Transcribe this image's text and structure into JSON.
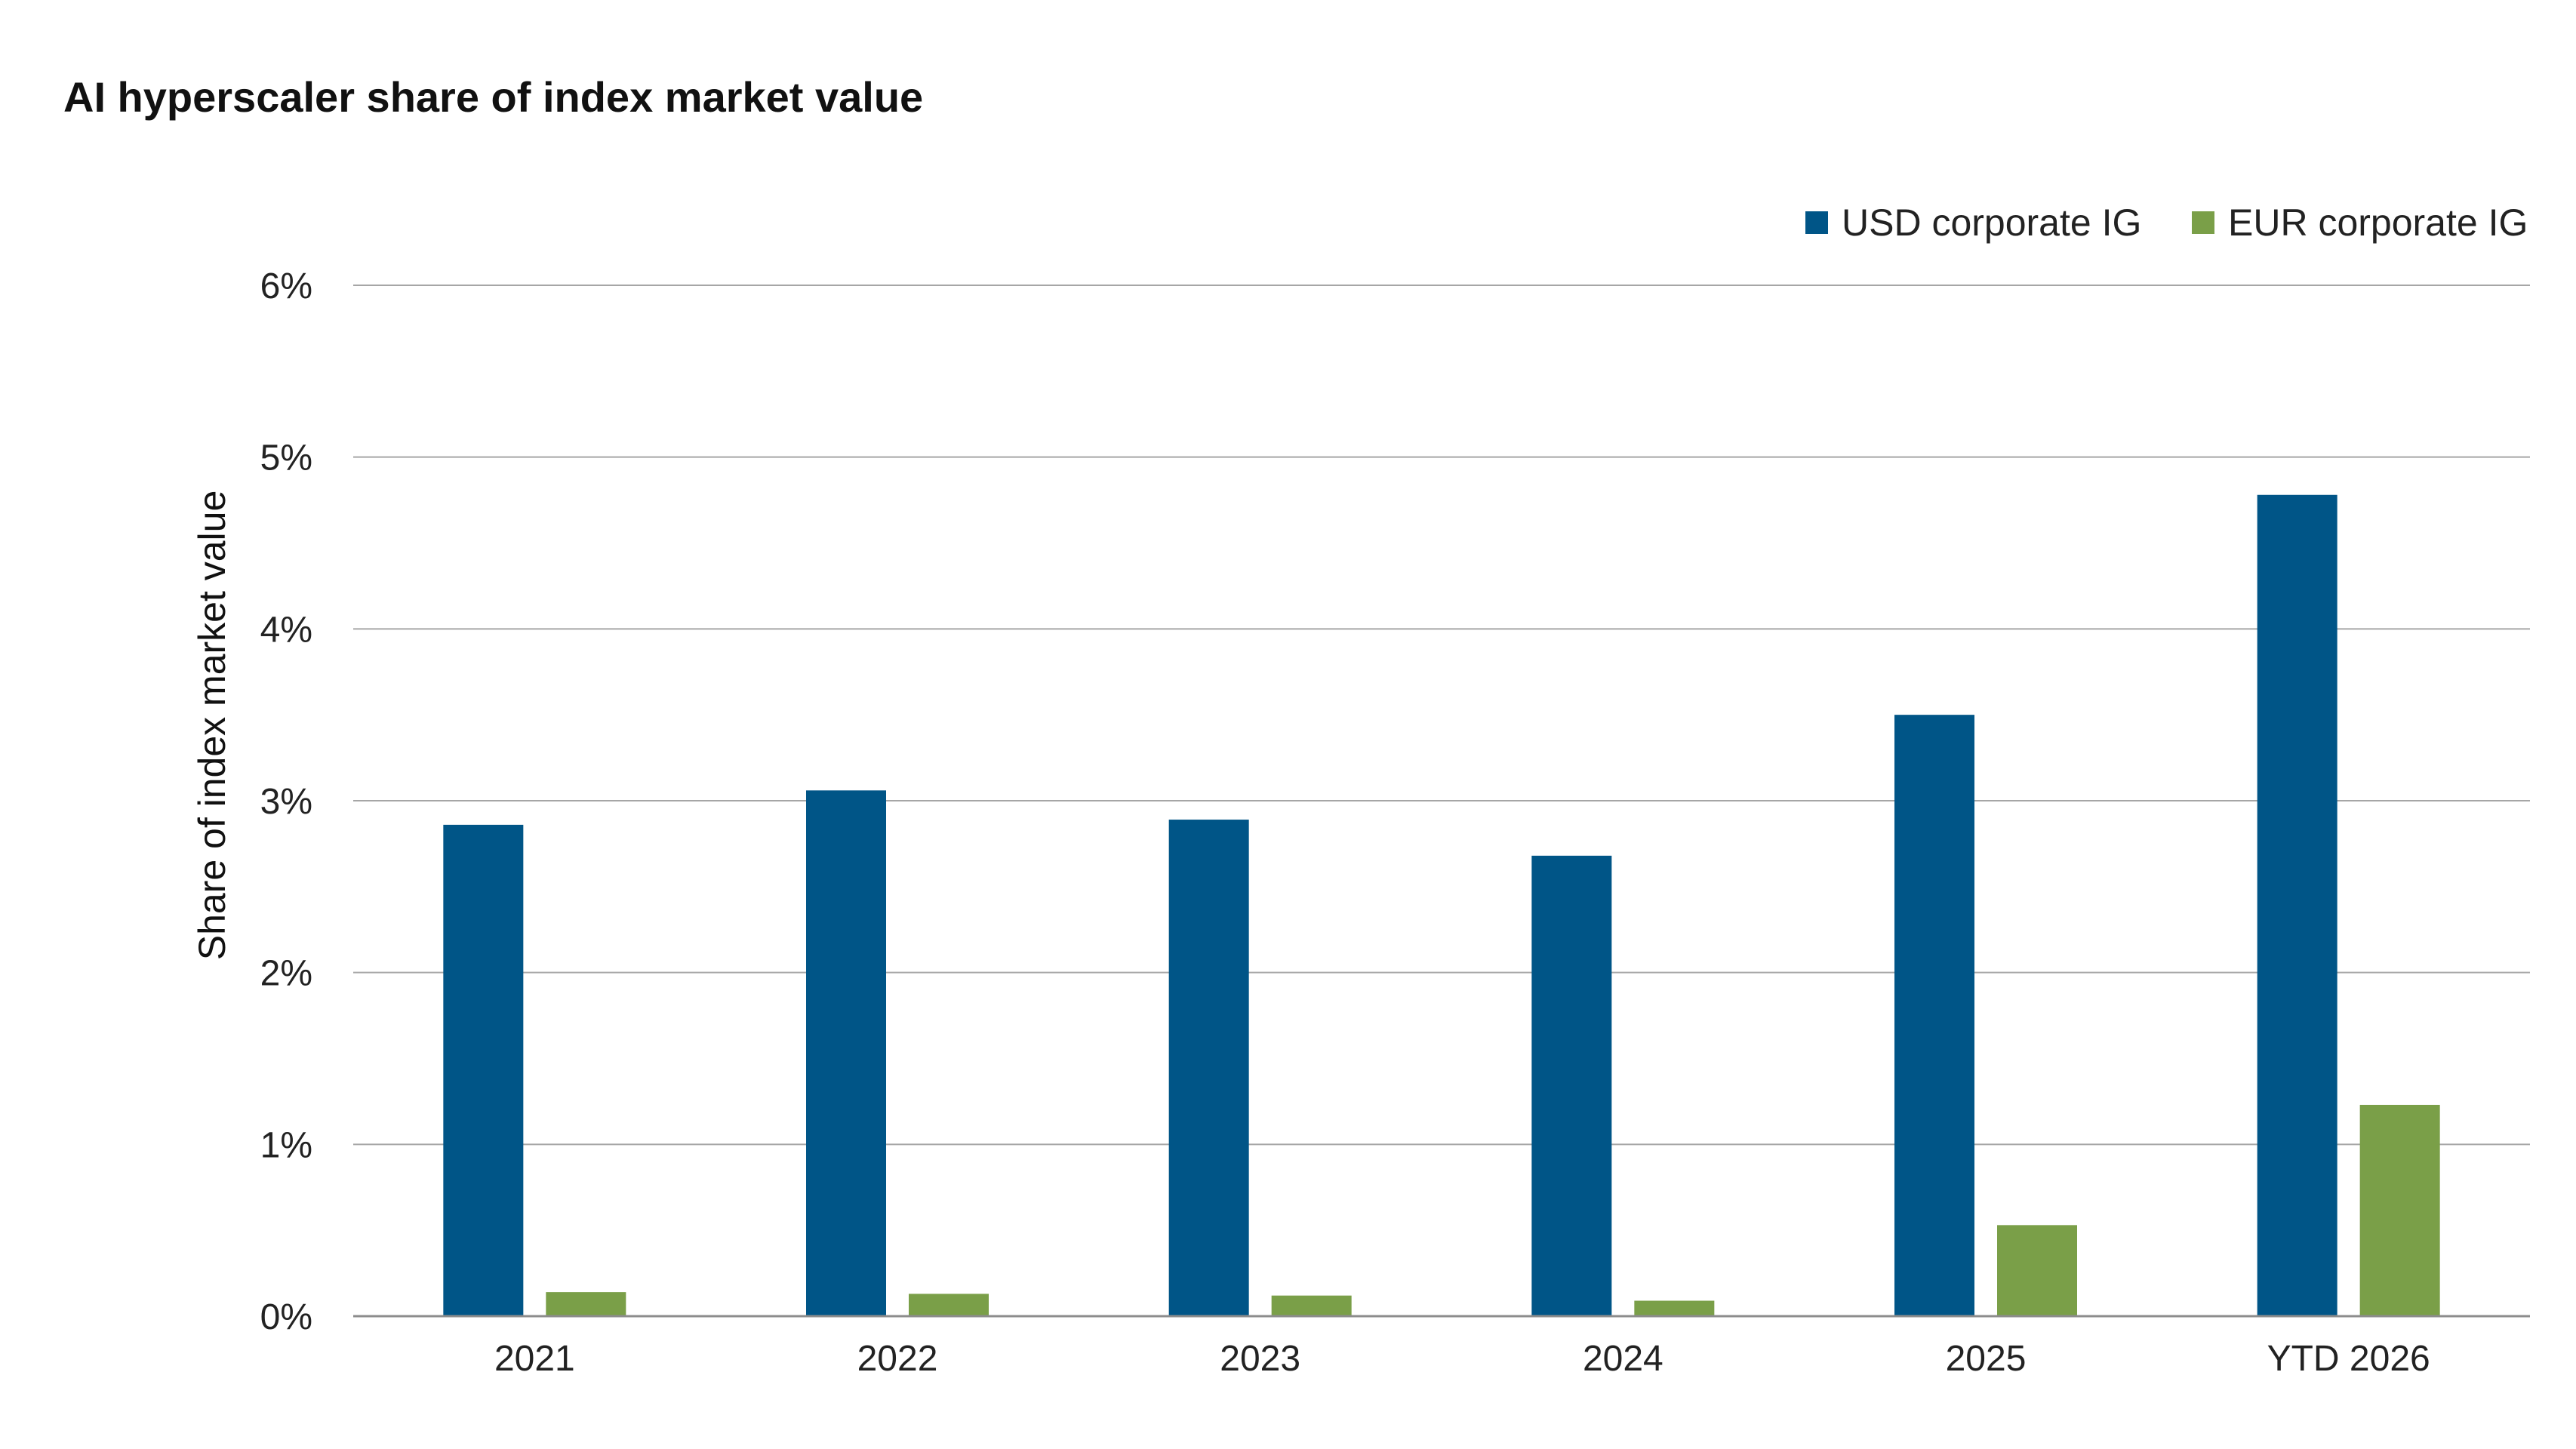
{
  "chart_data": {
    "type": "bar",
    "title": "AI hyperscaler share of index market value",
    "xlabel": "",
    "ylabel": "Share of index market value",
    "categories": [
      "2021",
      "2022",
      "2023",
      "2024",
      "2025",
      "YTD 2026"
    ],
    "series": [
      {
        "name": "USD corporate IG",
        "color": "#005587",
        "values": [
          2.86,
          3.06,
          2.89,
          2.68,
          3.5,
          4.78
        ]
      },
      {
        "name": "EUR corporate IG",
        "color": "#7a9f48",
        "values": [
          0.14,
          0.13,
          0.12,
          0.09,
          0.53,
          1.23
        ]
      }
    ],
    "ylim": [
      0,
      6
    ],
    "yticks": [
      0,
      1,
      2,
      3,
      4,
      5,
      6
    ],
    "ytick_labels": [
      "0%",
      "1%",
      "2%",
      "3%",
      "4%",
      "5%",
      "6%"
    ],
    "grid": "horizontal",
    "legend_position": "top-right"
  }
}
